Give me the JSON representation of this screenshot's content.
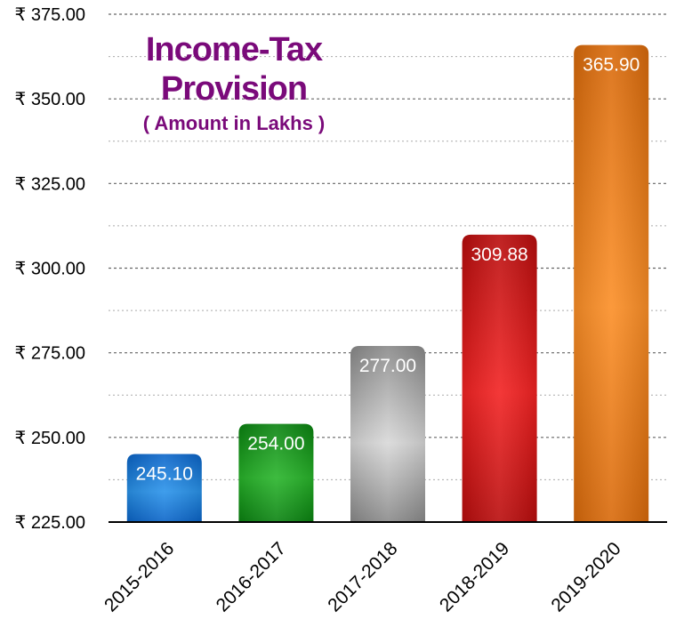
{
  "chart_data": {
    "type": "bar",
    "title_lines": [
      "Income-Tax",
      "Provision"
    ],
    "subtitle": "( Amount in Lakhs )",
    "categories": [
      "2015-2016",
      "2016-2017",
      "2017-2018",
      "2018-2019",
      "2019-2020"
    ],
    "values": [
      245.1,
      254.0,
      277.0,
      309.88,
      365.9
    ],
    "value_labels": [
      "245.10",
      "254.00",
      "277.00",
      "309.88",
      "365.90"
    ],
    "bar_colors": [
      {
        "light": "#2a93ea",
        "dark": "#0a64c8"
      },
      {
        "light": "#28b42a",
        "dark": "#0a8210"
      },
      {
        "light": "#d8d8d8",
        "dark": "#8a8a8a"
      },
      {
        "light": "#f22222",
        "dark": "#b80c0c"
      },
      {
        "light": "#fb8e26",
        "dark": "#d8690a"
      }
    ],
    "y_ticks": [
      225,
      250,
      275,
      300,
      325,
      350,
      375
    ],
    "y_tick_labels": [
      "₹ 225.00",
      "₹ 250.00",
      "₹ 275.00",
      "₹ 300.00",
      "₹ 325.00",
      "₹ 350.00",
      "₹ 375.00"
    ],
    "ylim": [
      225,
      375
    ],
    "minor_gridlines": true,
    "xlabel": "",
    "ylabel": "",
    "legend": "none"
  }
}
